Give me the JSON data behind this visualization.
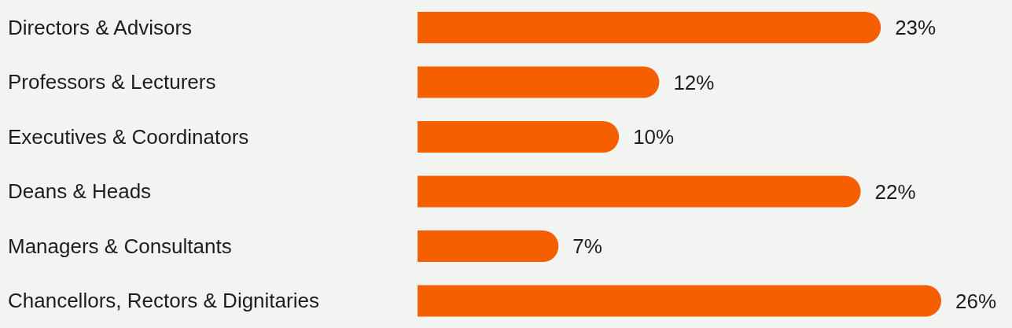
{
  "chart_data": {
    "type": "bar",
    "orientation": "horizontal",
    "categories": [
      "Directors & Advisors",
      "Professors & Lecturers",
      "Executives & Coordinators",
      "Deans & Heads",
      "Managers & Consultants",
      "Chancellors, Rectors & Dignitaries"
    ],
    "values": [
      23,
      12,
      10,
      22,
      7,
      26
    ],
    "value_labels": [
      "23%",
      "12%",
      "10%",
      "22%",
      "7%",
      "26%"
    ],
    "color": "#f55f00",
    "grid": false,
    "legend": false,
    "tick_labels": "y"
  }
}
